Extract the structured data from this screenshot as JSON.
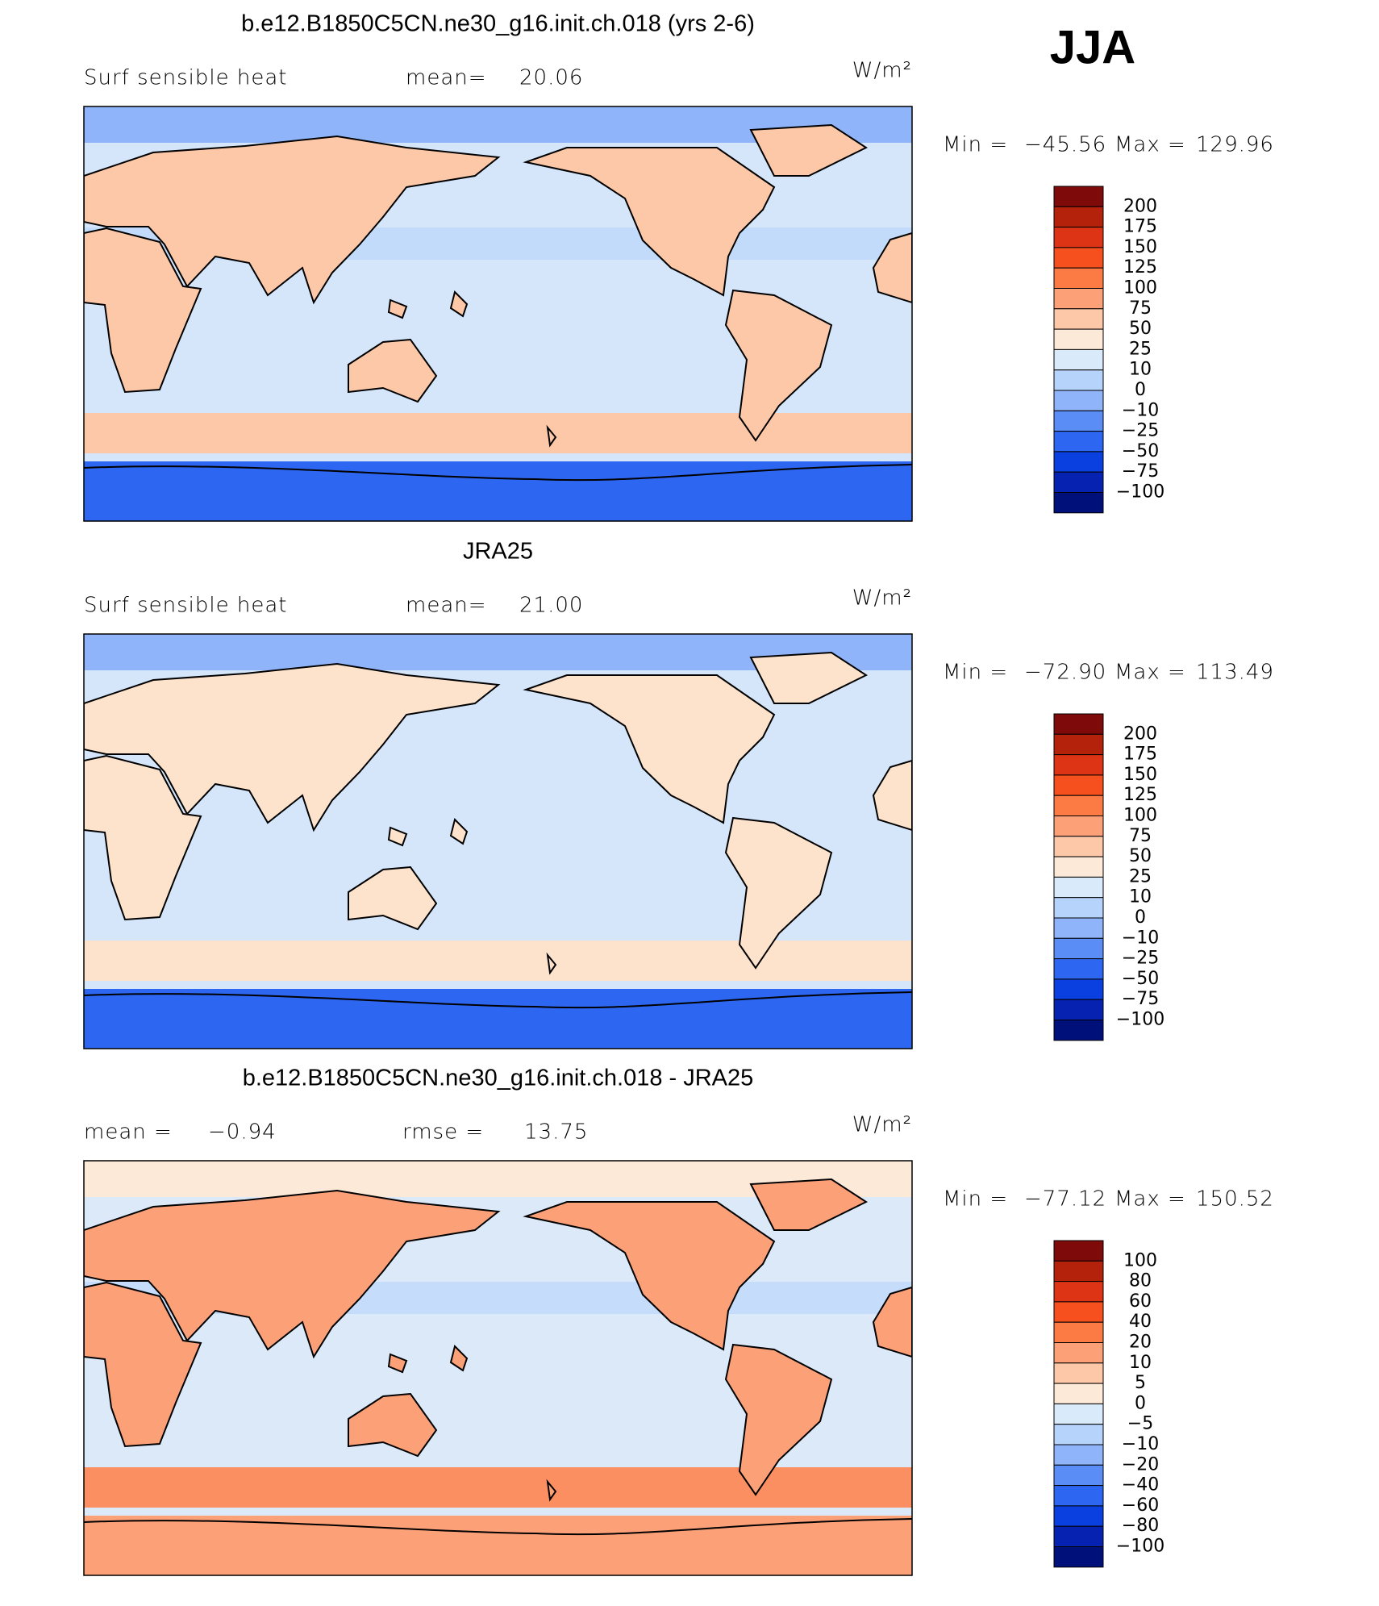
{
  "header": {
    "season": "JJA"
  },
  "colorbar_colors": [
    "#7f0a0a",
    "#b5220c",
    "#dc3414",
    "#f5501e",
    "#fc7b45",
    "#fca078",
    "#fdc8a8",
    "#fde9d8",
    "#d9eafa",
    "#b6d3fb",
    "#8fb4fa",
    "#5b8df7",
    "#2d66f0",
    "#0a40e0",
    "#0522b0",
    "#00107a"
  ],
  "panels": [
    {
      "title": "b.e12.B1850C5CN.ne30_g16.init.ch.018 (yrs 2-6)",
      "left_label": "Surf sensible heat",
      "stats": [
        {
          "label": "mean=",
          "value": "20.06"
        }
      ],
      "units": "W/m²",
      "min_label": "Min =",
      "min_value": "−45.56",
      "max_label": "Max =",
      "max_value": "129.96",
      "levels": [
        "200",
        "175",
        "150",
        "125",
        "100",
        "75",
        "50",
        "25",
        "10",
        "0",
        "−10",
        "−25",
        "−50",
        "−75",
        "−100"
      ]
    },
    {
      "title": "JRA25",
      "left_label": "Surf sensible heat",
      "stats": [
        {
          "label": "mean=",
          "value": "21.00"
        }
      ],
      "units": "W/m²",
      "min_label": "Min =",
      "min_value": "−72.90",
      "max_label": "Max =",
      "max_value": "113.49",
      "levels": [
        "200",
        "175",
        "150",
        "125",
        "100",
        "75",
        "50",
        "25",
        "10",
        "0",
        "−10",
        "−25",
        "−50",
        "−75",
        "−100"
      ]
    },
    {
      "title": "b.e12.B1850C5CN.ne30_g16.init.ch.018 - JRA25",
      "stats": [
        {
          "label": "mean =",
          "value": "−0.94"
        },
        {
          "label": "rmse =",
          "value": "13.75"
        }
      ],
      "units": "W/m²",
      "min_label": "Min =",
      "min_value": "−77.12",
      "max_label": "Max =",
      "max_value": "150.52",
      "levels": [
        "100",
        "80",
        "60",
        "40",
        "20",
        "10",
        "5",
        "0",
        "−5",
        "−10",
        "−20",
        "−40",
        "−60",
        "−80",
        "−100"
      ]
    }
  ]
}
